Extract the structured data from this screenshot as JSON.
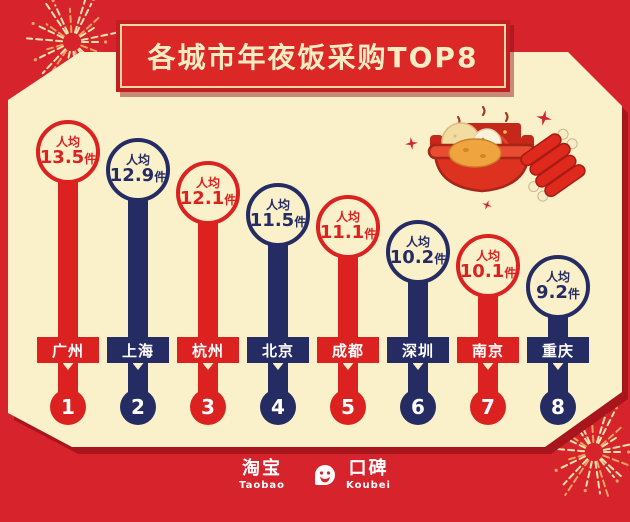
{
  "title": {
    "text": "各城市年夜饭采购TOP8"
  },
  "chart_data": {
    "type": "bar",
    "title": "各城市年夜饭采购TOP8",
    "value_label_prefix": "人均",
    "value_unit": "件",
    "categories": [
      "广州",
      "上海",
      "杭州",
      "北京",
      "成都",
      "深圳",
      "南京",
      "重庆"
    ],
    "values": [
      13.5,
      12.9,
      12.1,
      11.5,
      11.1,
      10.2,
      10.1,
      9.2
    ],
    "ranks": [
      1,
      2,
      3,
      4,
      5,
      6,
      7,
      8
    ],
    "colors": [
      "#DC2221",
      "#252B63",
      "#DC2221",
      "#252B63",
      "#DC2221",
      "#252B63",
      "#DC2221",
      "#252B63"
    ],
    "palette": {
      "red": "#DC2221",
      "navy": "#252B63",
      "cream_panel": "#FAF0CA",
      "background_red": "#D7232B",
      "banner_text": "#F8ECC3"
    },
    "legend": "none",
    "orientation": "lollipop-columns-descending"
  },
  "footer": {
    "taobao_zh": "淘宝",
    "taobao_en": "Taobao",
    "koubei_zh": "口碑",
    "koubei_en": "Koubei"
  },
  "icons": {
    "hotpot": "hotpot-with-dumplings-and-firecracker",
    "fireworks": "corner-firework-bursts",
    "sparkles": "red-four-point-stars",
    "koubei_logo": "white-smiley-bubble"
  }
}
